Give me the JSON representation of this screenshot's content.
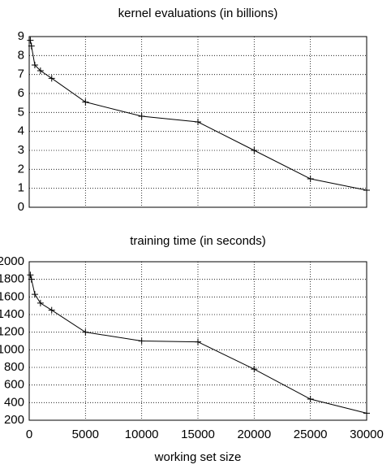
{
  "chart_data": [
    {
      "type": "line",
      "title": "kernel evaluations (in billions)",
      "x": [
        100,
        200,
        500,
        1000,
        2000,
        5000,
        10000,
        15000,
        20000,
        25000,
        30000
      ],
      "values": [
        8.8,
        8.5,
        7.5,
        7.2,
        6.8,
        5.55,
        4.8,
        4.5,
        3.0,
        1.5,
        0.9
      ],
      "color": "#000000",
      "xlim": [
        0,
        30000
      ],
      "ylim": [
        0,
        9
      ],
      "yticks": [
        0,
        1,
        2,
        3,
        4,
        5,
        6,
        7,
        8,
        9
      ],
      "grid": true
    },
    {
      "type": "line",
      "title": "training time (in seconds)",
      "xlabel": "working set size",
      "x": [
        100,
        200,
        500,
        1000,
        2000,
        5000,
        10000,
        15000,
        20000,
        25000,
        30000
      ],
      "values": [
        1850,
        1800,
        1630,
        1530,
        1450,
        1200,
        1100,
        1090,
        780,
        440,
        280
      ],
      "color": "#000000",
      "xlim": [
        0,
        30000
      ],
      "xticks": [
        0,
        5000,
        10000,
        15000,
        20000,
        25000,
        30000
      ],
      "ylim": [
        200,
        2000
      ],
      "yticks": [
        200,
        400,
        600,
        800,
        1000,
        1200,
        1400,
        1600,
        1800,
        2000
      ],
      "grid": true
    }
  ]
}
